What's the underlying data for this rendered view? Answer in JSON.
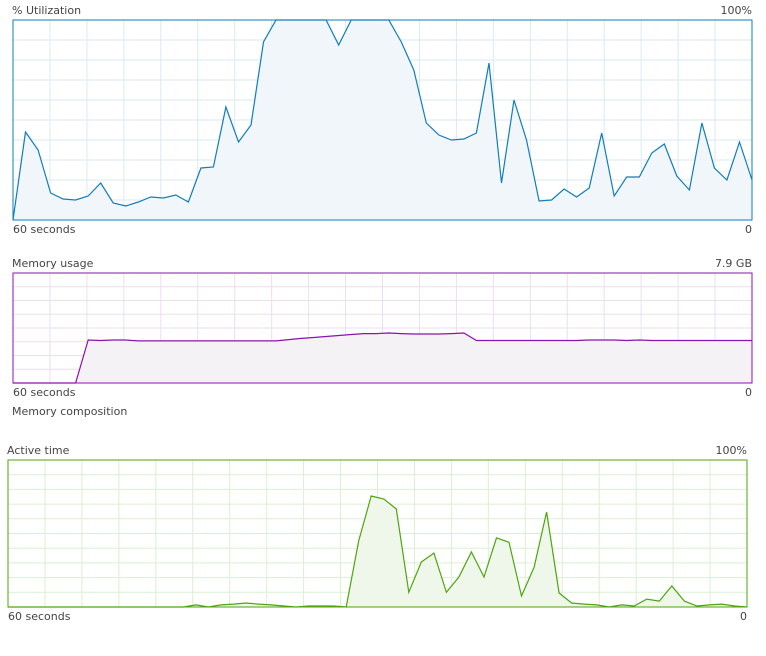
{
  "chart_data": [
    {
      "type": "line",
      "title": "% Utilization",
      "color": "#117dbb",
      "fill": "#f1f6fa",
      "grid_color": "#d9eaf4",
      "xlim": [
        60,
        0
      ],
      "xticks": [
        {
          "value": 60,
          "label": "60 seconds"
        },
        0
      ],
      "ylim": [
        0,
        100
      ],
      "yticks": [
        {
          "value": 100,
          "label": "100%"
        }
      ],
      "grid": true,
      "values": [
        0,
        44,
        35,
        13.5,
        10.5,
        10,
        12,
        18.5,
        8.5,
        7,
        9,
        11.5,
        11,
        12.5,
        9,
        26,
        26.5,
        56.5,
        39,
        47.5,
        89,
        100,
        100,
        100,
        100,
        100,
        87.5,
        100,
        100,
        100,
        100,
        89,
        75,
        48.5,
        42.5,
        40,
        40.5,
        43.5,
        78.5,
        18.5,
        60,
        40,
        9.5,
        10,
        15.5,
        11.5,
        16,
        43.5,
        12,
        21.5,
        21.5,
        33.5,
        38,
        22,
        15,
        48.5,
        26,
        20,
        39,
        20
      ]
    },
    {
      "type": "line",
      "title": "Memory usage",
      "section_label": "Memory composition",
      "color": "#8b12ae",
      "fill": "#f4f2f4",
      "grid_color": "#ecdef0",
      "xlim": [
        60,
        0
      ],
      "xticks": [
        {
          "value": 60,
          "label": "60 seconds"
        },
        0
      ],
      "ylim": [
        0,
        7.9
      ],
      "yticks": [
        {
          "value": 7.9,
          "label": "7.9 GB"
        }
      ],
      "grid": true,
      "values": [
        0,
        0,
        0,
        0,
        0,
        0,
        3.09,
        3.05,
        3.09,
        3.09,
        3.02,
        3.02,
        3.02,
        3.02,
        3.02,
        3.02,
        3.02,
        3.02,
        3.02,
        3.02,
        3.02,
        3.02,
        3.12,
        3.2,
        3.27,
        3.34,
        3.41,
        3.48,
        3.55,
        3.55,
        3.59,
        3.55,
        3.52,
        3.52,
        3.52,
        3.55,
        3.59,
        3.05,
        3.05,
        3.05,
        3.05,
        3.05,
        3.05,
        3.05,
        3.05,
        3.05,
        3.09,
        3.09,
        3.09,
        3.05,
        3.09,
        3.05,
        3.05,
        3.05,
        3.05,
        3.05,
        3.05,
        3.05,
        3.05,
        3.05
      ]
    },
    {
      "type": "line",
      "title": "Active time",
      "color": "#4da60c",
      "fill": "#eff7ea",
      "grid_color": "#dcefd0",
      "xlim": [
        60,
        0
      ],
      "xticks": [
        {
          "value": 60,
          "label": "60 seconds"
        },
        0
      ],
      "ylim": [
        0,
        100
      ],
      "yticks": [
        {
          "value": 100,
          "label": "100%"
        }
      ],
      "grid": true,
      "values": [
        0,
        0,
        0,
        0,
        0,
        0,
        0,
        0,
        0,
        0,
        0,
        0,
        0,
        0,
        0,
        1.4,
        0,
        1.4,
        2,
        2.7,
        2,
        1.4,
        0.7,
        0,
        0.7,
        0.7,
        0.7,
        0,
        45,
        75.5,
        73.5,
        66.7,
        10,
        30.6,
        36.7,
        10,
        20.4,
        37.4,
        20.4,
        47,
        44,
        7.5,
        27,
        64.6,
        9.5,
        2.7,
        2,
        1.4,
        0,
        1.4,
        0.7,
        5.4,
        4,
        14.3,
        4,
        0.7,
        1.4,
        2,
        0.7,
        0
      ]
    }
  ]
}
